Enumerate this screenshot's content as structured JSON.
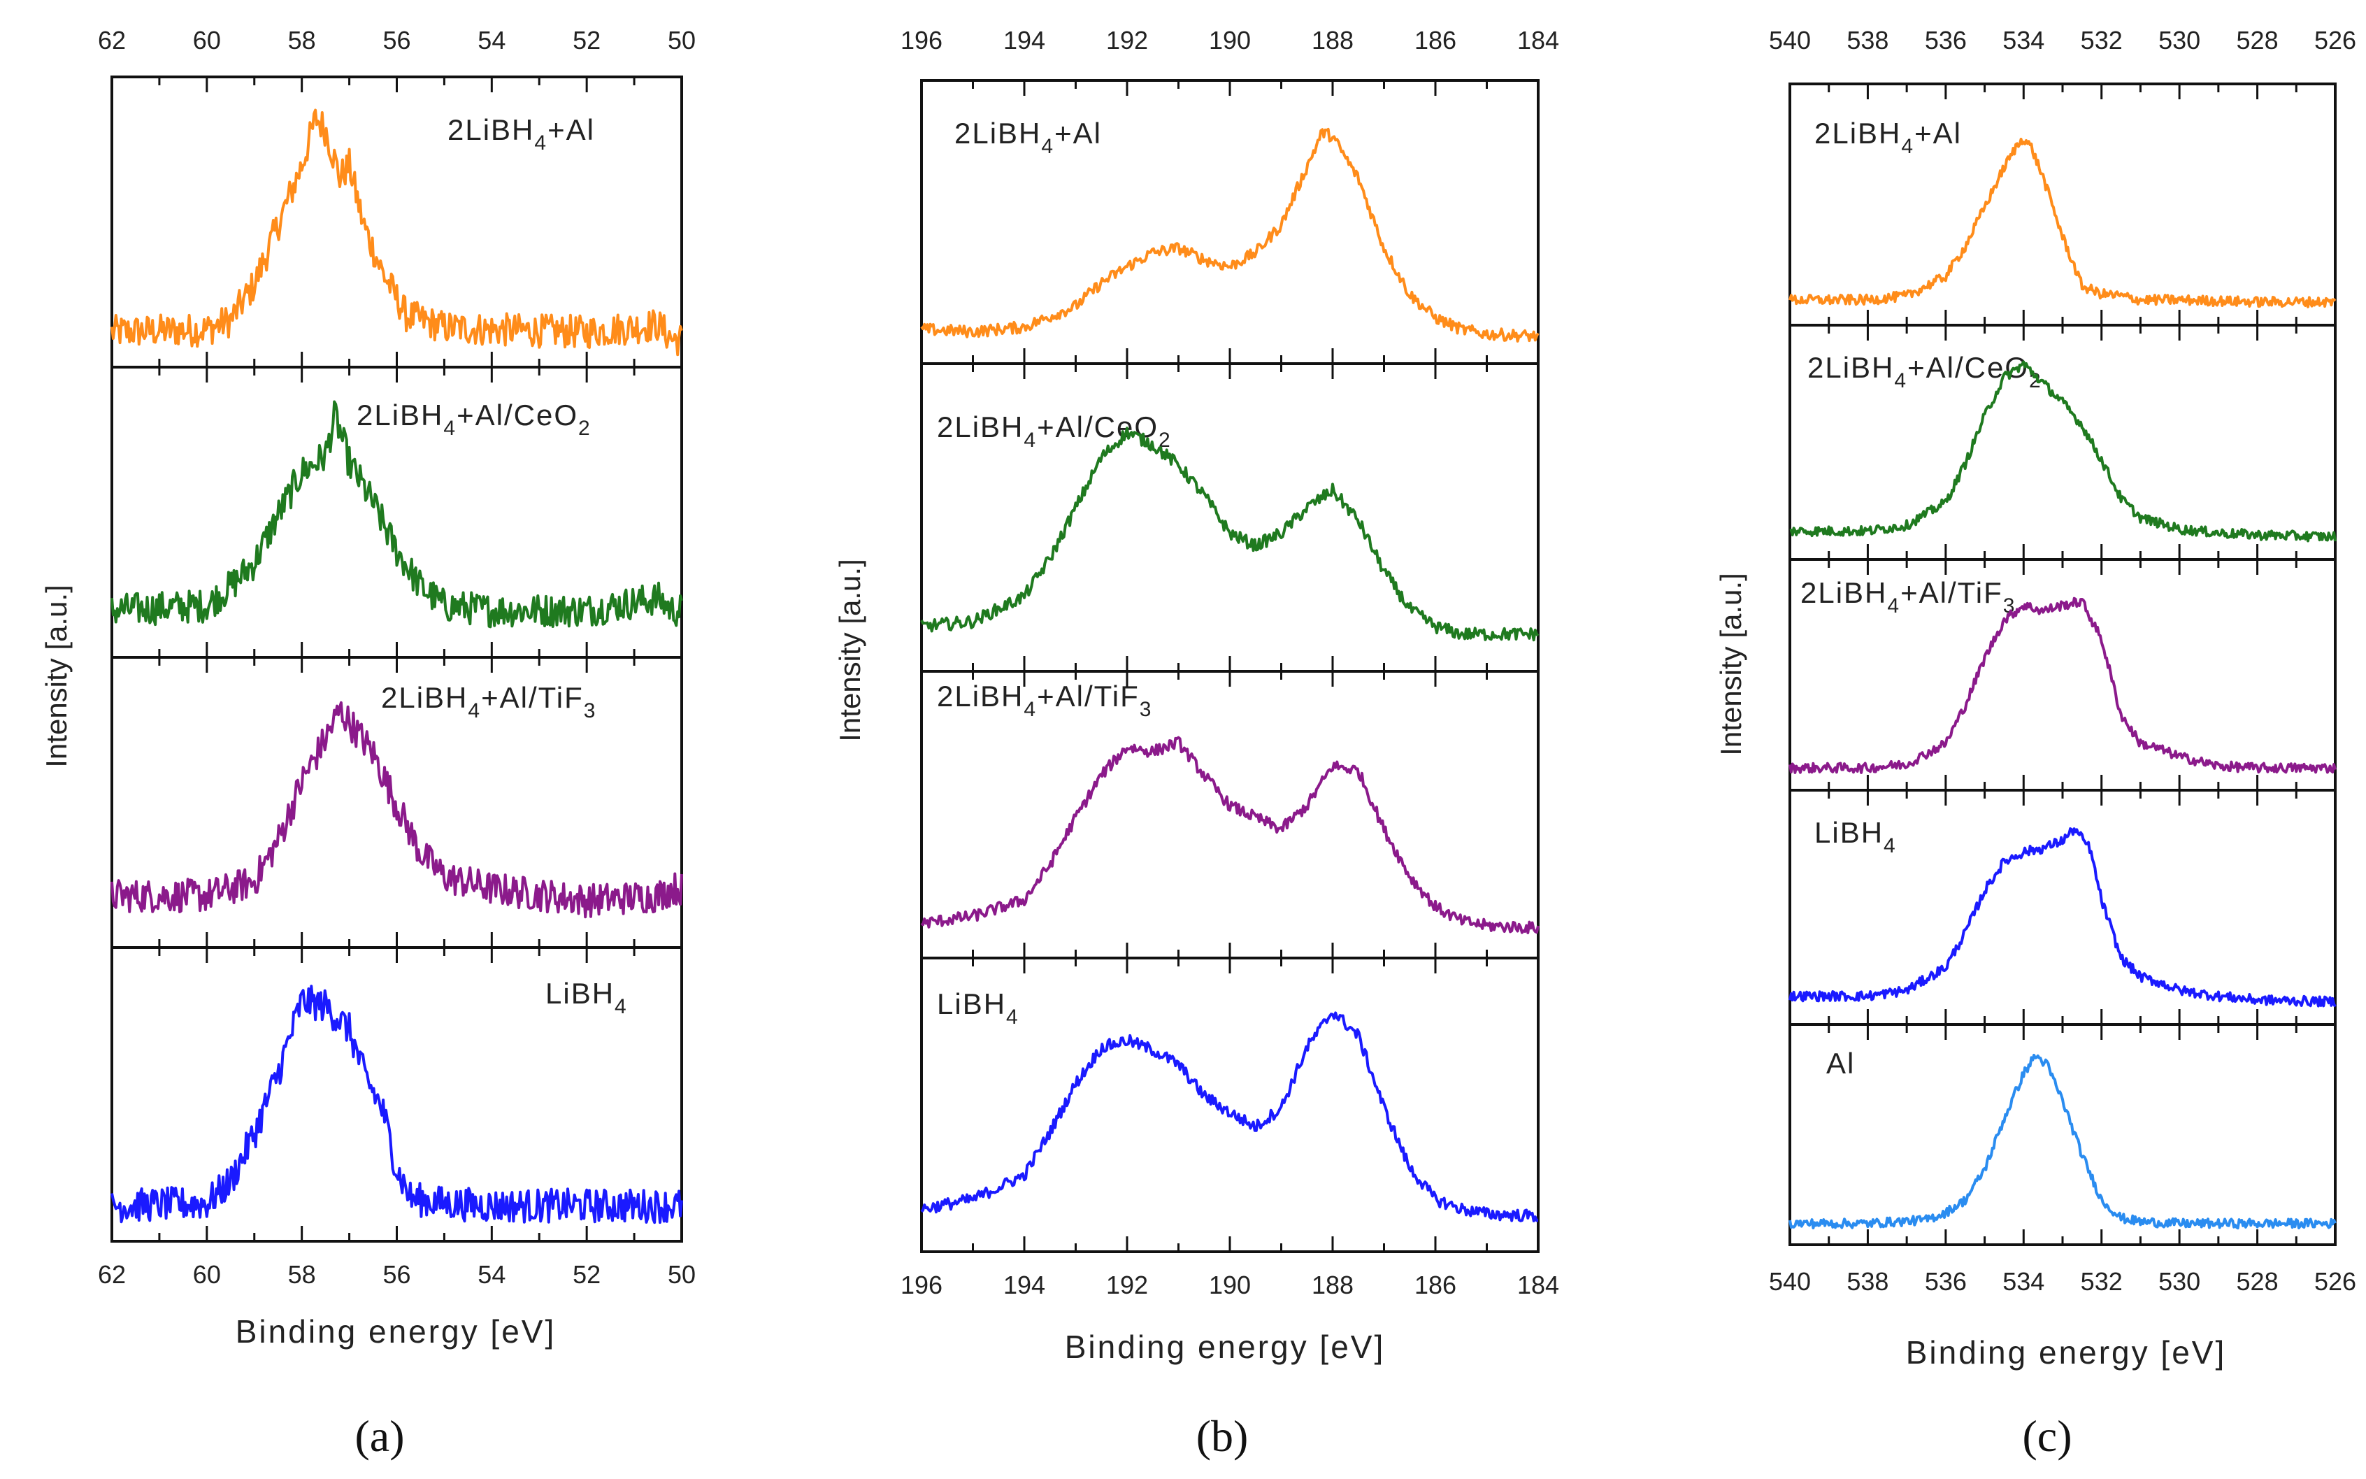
{
  "chart_data": [
    {
      "type": "line",
      "panel_label": "(a)",
      "xlabel": "Binding energy [eV]",
      "ylabel": "Intensity [a.u.]",
      "xlim": [
        62,
        50
      ],
      "x_ticks": [
        62,
        60,
        58,
        56,
        54,
        52,
        50
      ],
      "series": [
        {
          "name": "2LiBH4+Al",
          "color": "#ff8c1a",
          "x": [
            62,
            60,
            59.5,
            59,
            58.5,
            58,
            57.7,
            57.5,
            57.2,
            57,
            56.7,
            56.3,
            55.8,
            55,
            54,
            52,
            50.5,
            50.2
          ],
          "values": [
            0.05,
            0.06,
            0.1,
            0.25,
            0.5,
            0.75,
            0.95,
            0.9,
            0.7,
            0.75,
            0.5,
            0.3,
            0.12,
            0.07,
            0.06,
            0.05,
            0.08,
            0.02
          ]
        },
        {
          "name": "2LiBH4+Al/CeO2",
          "color": "#1f7a1f",
          "x": [
            62,
            60,
            59.5,
            59,
            58.5,
            58,
            57.5,
            57.3,
            57,
            56.5,
            56,
            55.5,
            55,
            54,
            52,
            50.5,
            50.2
          ],
          "values": [
            0.1,
            0.12,
            0.2,
            0.3,
            0.5,
            0.68,
            0.75,
            0.92,
            0.72,
            0.55,
            0.35,
            0.2,
            0.12,
            0.1,
            0.1,
            0.15,
            0.1
          ]
        },
        {
          "name": "2LiBH4+Al/TiF3",
          "color": "#8b1a8b",
          "x": [
            62,
            60,
            59,
            58.5,
            58,
            57.5,
            57.2,
            57,
            56.5,
            56,
            55.5,
            55,
            54,
            52,
            50.5,
            50.2
          ],
          "values": [
            0.12,
            0.12,
            0.18,
            0.35,
            0.6,
            0.78,
            0.9,
            0.85,
            0.72,
            0.5,
            0.3,
            0.2,
            0.15,
            0.1,
            0.12,
            0.15
          ]
        },
        {
          "name": "LiBH4",
          "color": "#1a1aff",
          "x": [
            62,
            60,
            59.5,
            59,
            58.5,
            58,
            57.5,
            57,
            56.7,
            56.3,
            56,
            55.7,
            55,
            54,
            52,
            50.5,
            50.2
          ],
          "values": [
            0.05,
            0.06,
            0.15,
            0.35,
            0.6,
            0.9,
            0.88,
            0.78,
            0.6,
            0.45,
            0.2,
            0.08,
            0.06,
            0.05,
            0.05,
            0.05,
            0.05
          ]
        }
      ]
    },
    {
      "type": "line",
      "panel_label": "(b)",
      "xlabel": "Binding energy [eV]",
      "ylabel": "Intensity [a.u.]",
      "xlim": [
        196,
        184
      ],
      "x_ticks": [
        196,
        194,
        192,
        190,
        188,
        186,
        184
      ],
      "series": [
        {
          "name": "2LiBH4+Al",
          "color": "#ff8c1a",
          "x": [
            196,
            195,
            194,
            193,
            192.5,
            192,
            191.5,
            191,
            190.5,
            190,
            189.5,
            189,
            188.5,
            188.2,
            188,
            187.5,
            187,
            186.5,
            186,
            185.5,
            185,
            184
          ],
          "values": [
            0.05,
            0.04,
            0.06,
            0.15,
            0.25,
            0.32,
            0.38,
            0.4,
            0.35,
            0.32,
            0.38,
            0.5,
            0.75,
            0.9,
            0.88,
            0.7,
            0.4,
            0.2,
            0.1,
            0.05,
            0.03,
            0.02
          ]
        },
        {
          "name": "2LiBH4+Al/CeO2",
          "color": "#1f7a1f",
          "x": [
            196,
            195,
            194,
            193.5,
            193,
            192.5,
            192,
            191.5,
            191,
            190.5,
            190,
            189.5,
            189,
            188.5,
            188,
            187.5,
            187,
            186.5,
            186,
            185.5,
            185,
            184
          ],
          "values": [
            0.08,
            0.1,
            0.2,
            0.35,
            0.55,
            0.75,
            0.85,
            0.8,
            0.72,
            0.6,
            0.45,
            0.4,
            0.45,
            0.55,
            0.62,
            0.5,
            0.3,
            0.15,
            0.08,
            0.05,
            0.05,
            0.05
          ]
        },
        {
          "name": "2LiBH4+Al/TiF3",
          "color": "#8b1a8b",
          "x": [
            196,
            195,
            194,
            193.5,
            193,
            192.5,
            192,
            191.5,
            191,
            190.5,
            190,
            189.5,
            189,
            188.5,
            188,
            187.5,
            187,
            186.5,
            186,
            185.5,
            185,
            184
          ],
          "values": [
            0.05,
            0.08,
            0.15,
            0.3,
            0.5,
            0.68,
            0.8,
            0.78,
            0.82,
            0.68,
            0.55,
            0.5,
            0.45,
            0.55,
            0.72,
            0.7,
            0.45,
            0.25,
            0.12,
            0.06,
            0.04,
            0.03
          ]
        },
        {
          "name": "LiBH4",
          "color": "#1a1aff",
          "x": [
            196,
            195,
            194,
            193.5,
            193,
            192.5,
            192,
            191.5,
            191,
            190.5,
            190,
            189.5,
            189,
            188.5,
            188,
            187.5,
            187,
            186.5,
            186,
            185.5,
            185,
            184
          ],
          "values": [
            0.08,
            0.12,
            0.22,
            0.4,
            0.6,
            0.75,
            0.78,
            0.74,
            0.68,
            0.55,
            0.48,
            0.42,
            0.5,
            0.75,
            0.9,
            0.8,
            0.5,
            0.25,
            0.12,
            0.08,
            0.06,
            0.05
          ]
        }
      ]
    },
    {
      "type": "line",
      "panel_label": "(c)",
      "xlabel": "Binding energy [eV]",
      "ylabel": "Intensity [a.u.]",
      "xlim": [
        540,
        526
      ],
      "x_ticks": [
        540,
        538,
        536,
        534,
        532,
        530,
        528,
        526
      ],
      "series": [
        {
          "name": "2LiBH4+Al",
          "color": "#ff8c1a",
          "x": [
            540,
            538,
            537,
            536,
            535.5,
            535,
            534.5,
            534.2,
            534,
            533.8,
            533.5,
            533,
            532.5,
            532,
            531.5,
            531,
            530,
            528,
            526
          ],
          "values": [
            0.03,
            0.03,
            0.05,
            0.15,
            0.3,
            0.5,
            0.7,
            0.8,
            0.85,
            0.8,
            0.65,
            0.35,
            0.1,
            0.06,
            0.05,
            0.03,
            0.03,
            0.02,
            0.02
          ]
        },
        {
          "name": "2LiBH4+Al/CeO2",
          "color": "#1f7a1f",
          "x": [
            540,
            538,
            537,
            536,
            535.5,
            535,
            534.5,
            534,
            533.5,
            533,
            532.5,
            532,
            531.5,
            531,
            530,
            529,
            528,
            526
          ],
          "values": [
            0.05,
            0.05,
            0.08,
            0.2,
            0.4,
            0.65,
            0.85,
            0.92,
            0.82,
            0.72,
            0.6,
            0.42,
            0.22,
            0.12,
            0.06,
            0.04,
            0.03,
            0.02
          ]
        },
        {
          "name": "2LiBH4+Al/TiF3",
          "color": "#8b1a8b",
          "x": [
            540,
            538,
            537,
            536,
            535.5,
            535,
            534.5,
            534,
            533.5,
            533,
            532.5,
            532,
            531.5,
            531,
            530.5,
            530,
            529,
            528,
            526
          ],
          "values": [
            0.02,
            0.02,
            0.04,
            0.15,
            0.35,
            0.6,
            0.8,
            0.88,
            0.85,
            0.88,
            0.9,
            0.7,
            0.3,
            0.15,
            0.12,
            0.08,
            0.03,
            0.02,
            0.02
          ]
        },
        {
          "name": "LiBH4",
          "color": "#1a1aff",
          "x": [
            540,
            538,
            537,
            536,
            535.5,
            535,
            534.5,
            534,
            533.5,
            533,
            532.7,
            532.3,
            532,
            531.5,
            531,
            530.5,
            530,
            529,
            528,
            526
          ],
          "values": [
            0.05,
            0.05,
            0.08,
            0.2,
            0.38,
            0.6,
            0.75,
            0.8,
            0.82,
            0.86,
            0.92,
            0.82,
            0.55,
            0.25,
            0.15,
            0.12,
            0.08,
            0.05,
            0.03,
            0.02
          ]
        },
        {
          "name": "Al",
          "color": "#2a8cf0",
          "x": [
            540,
            538,
            536.5,
            536,
            535.5,
            535,
            534.5,
            534,
            533.7,
            533.4,
            533,
            532.5,
            532,
            531.5,
            531,
            530,
            528,
            526
          ],
          "values": [
            0.02,
            0.02,
            0.04,
            0.08,
            0.15,
            0.32,
            0.6,
            0.85,
            0.95,
            0.9,
            0.7,
            0.4,
            0.15,
            0.05,
            0.03,
            0.02,
            0.02,
            0.02
          ]
        }
      ]
    }
  ],
  "labels": {
    "a": {
      "s1": {
        "pre": "2LiBH",
        "sub": "4",
        "post": "+Al",
        "post_sub": ""
      },
      "s2": {
        "pre": "2LiBH",
        "sub": "4",
        "post": "+Al/CeO",
        "post_sub": "2"
      },
      "s3": {
        "pre": "2LiBH",
        "sub": "4",
        "post": "+Al/TiF",
        "post_sub": "3"
      },
      "s4": {
        "pre": "LiBH",
        "sub": "4",
        "post": "",
        "post_sub": ""
      }
    },
    "b": {
      "s1": {
        "pre": "2LiBH",
        "sub": "4",
        "post": "+Al",
        "post_sub": ""
      },
      "s2": {
        "pre": "2LiBH",
        "sub": "4",
        "post": "+Al/CeO",
        "post_sub": "2"
      },
      "s3": {
        "pre": "2LiBH",
        "sub": "4",
        "post": "+Al/TiF",
        "post_sub": "3"
      },
      "s4": {
        "pre": "LiBH",
        "sub": "4",
        "post": "",
        "post_sub": ""
      }
    },
    "c": {
      "s1": {
        "pre": "2LiBH",
        "sub": "4",
        "post": "+Al",
        "post_sub": ""
      },
      "s2": {
        "pre": "2LiBH",
        "sub": "4",
        "post": "+Al/CeO",
        "post_sub": "2"
      },
      "s3": {
        "pre": "2LiBH",
        "sub": "4",
        "post": "+Al/TiF",
        "post_sub": "3"
      },
      "s4": {
        "pre": "LiBH",
        "sub": "4",
        "post": "",
        "post_sub": ""
      },
      "s5": {
        "pre": "Al",
        "sub": "",
        "post": "",
        "post_sub": ""
      }
    }
  },
  "colors": {
    "axis": "#111111",
    "orange": "#ff8c1a",
    "green": "#1f7a1f",
    "purple": "#8b1a8b",
    "blue": "#1a1aff",
    "lightblue": "#2a8cf0"
  }
}
